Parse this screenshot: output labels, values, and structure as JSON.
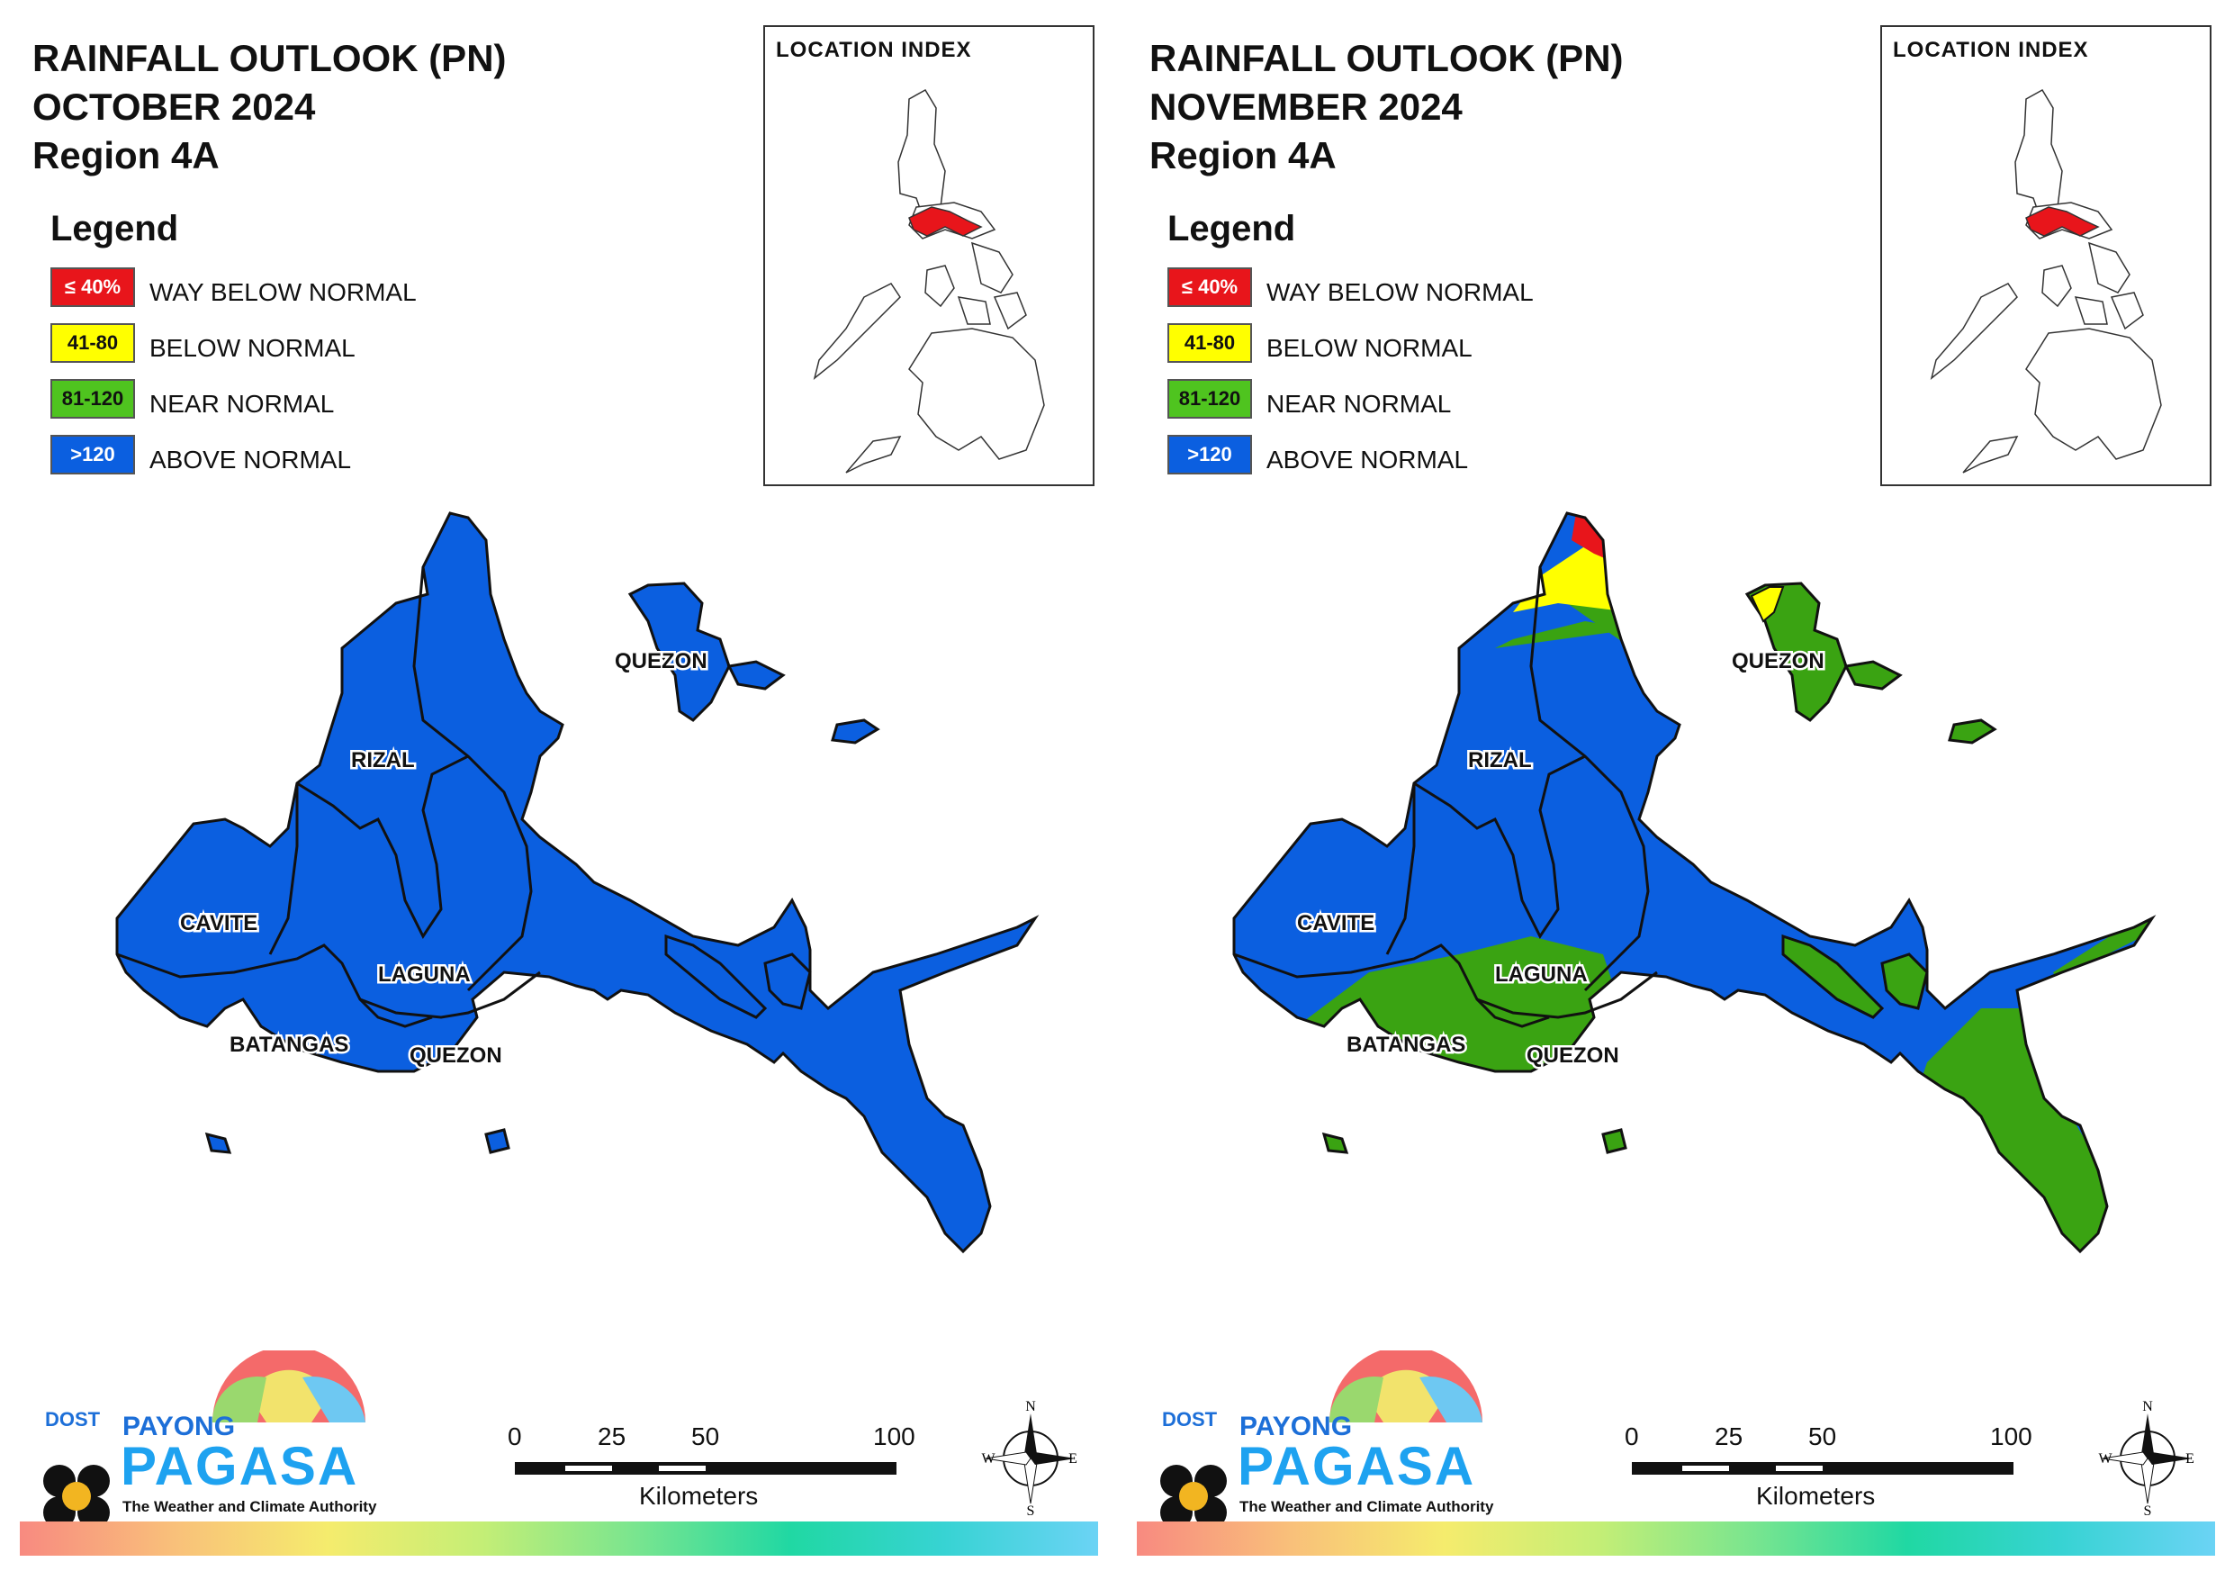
{
  "panels": [
    {
      "title_line1": "RAINFALL OUTLOOK (PN)",
      "title_line2": "OCTOBER 2024",
      "title_line3": "Region 4A"
    },
    {
      "title_line1": "RAINFALL OUTLOOK (PN)",
      "title_line2": "NOVEMBER 2024",
      "title_line3": "Region 4A"
    }
  ],
  "legend": {
    "title": "Legend",
    "items": [
      {
        "range": "≤ 40%",
        "label": "WAY BELOW NORMAL",
        "color": "#e8151b",
        "text_color": "#ffffff"
      },
      {
        "range": "41-80",
        "label": "BELOW NORMAL",
        "color": "#ffff00",
        "text_color": "#111111"
      },
      {
        "range": "81-120",
        "label": "NEAR NORMAL",
        "color": "#4fc41f",
        "text_color": "#111111"
      },
      {
        "range": ">120",
        "label": "ABOVE NORMAL",
        "color": "#0b5fe0",
        "text_color": "#ffffff"
      }
    ]
  },
  "inset": {
    "title": "LOCATION INDEX",
    "highlight_color": "#e8151b"
  },
  "map": {
    "provinces": {
      "rizal": "RIZAL",
      "cavite": "CAVITE",
      "laguna": "LAGUNA",
      "batangas": "BATANGAS",
      "quezon_south": "QUEZON",
      "quezon_north": "QUEZON"
    },
    "colors": {
      "above_normal": "#0b5fe0",
      "near_normal": "#3aa312",
      "below_normal": "#ffff00",
      "way_below_normal": "#e8151b"
    },
    "october_dominant_category": "ABOVE NORMAL",
    "november_categories_present": [
      "ABOVE NORMAL",
      "NEAR NORMAL",
      "BELOW NORMAL",
      "WAY BELOW NORMAL"
    ]
  },
  "logo": {
    "dost": "DOST",
    "payong": "PAYONG",
    "pagasa": "PAGASA",
    "tagline": "The Weather and Climate Authority"
  },
  "scalebar": {
    "ticks": [
      "0",
      "25",
      "50",
      "100"
    ],
    "unit": "Kilometers"
  },
  "compass": {
    "n": "N",
    "s": "S",
    "e": "E",
    "w": "W"
  }
}
